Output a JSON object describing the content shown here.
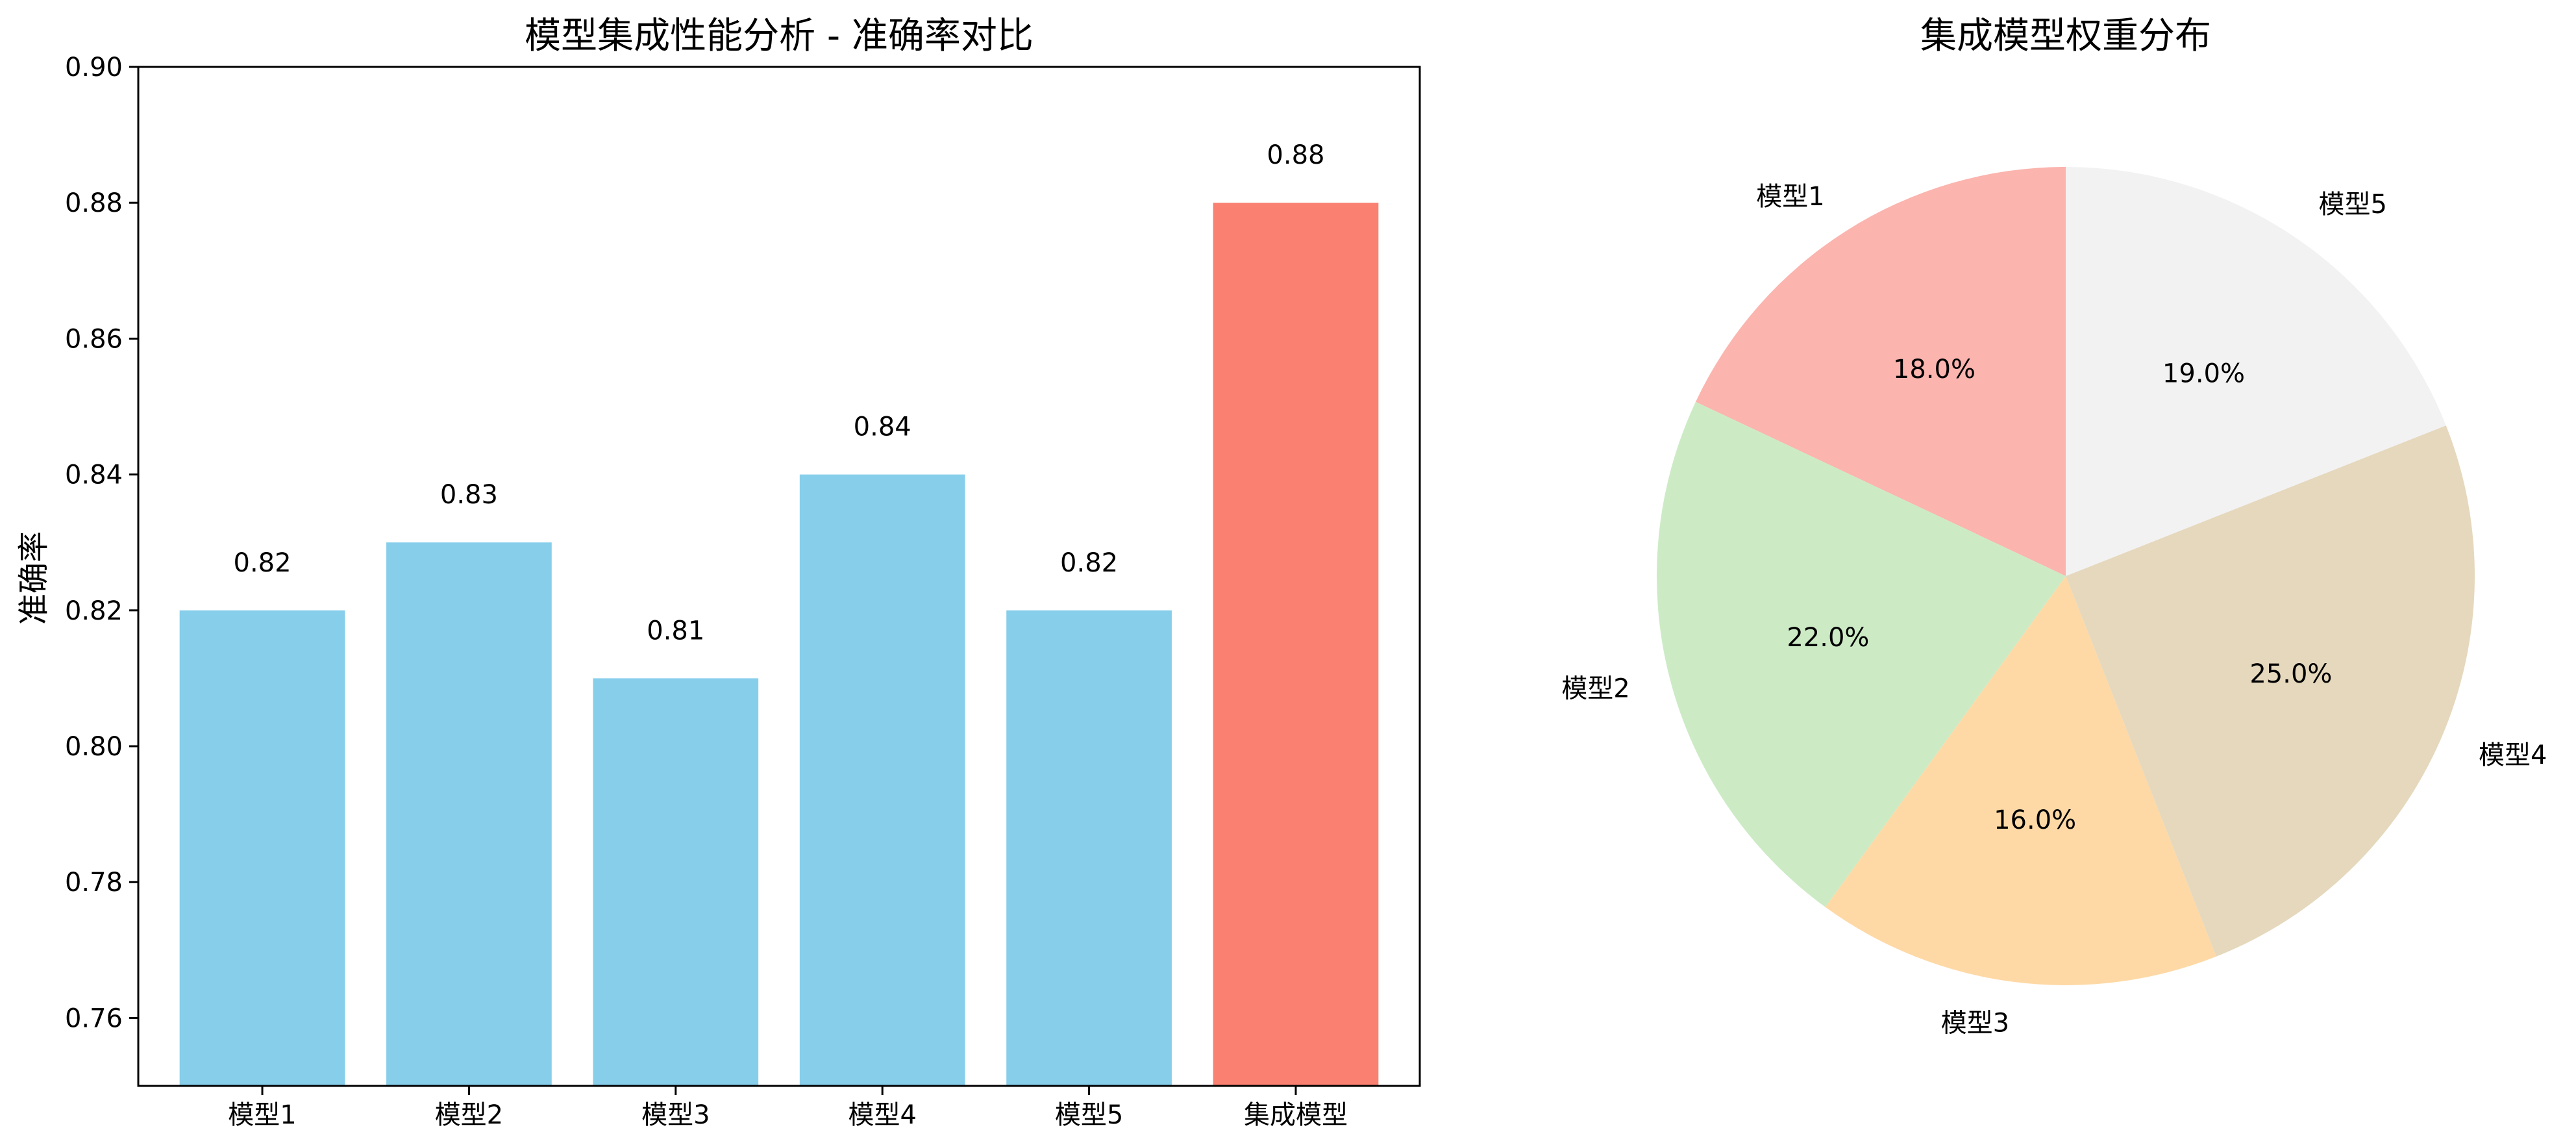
{
  "chart_data": [
    {
      "type": "bar",
      "title": "模型集成性能分析 - 准确率对比",
      "xlabel": "",
      "ylabel": "准确率",
      "ylim": [
        0.75,
        0.9
      ],
      "yticks": [
        0.76,
        0.78,
        0.8,
        0.82,
        0.84,
        0.86,
        0.88,
        0.9
      ],
      "ytick_labels": [
        "0.76",
        "0.78",
        "0.80",
        "0.82",
        "0.84",
        "0.86",
        "0.88",
        "0.90"
      ],
      "categories": [
        "模型1",
        "模型2",
        "模型3",
        "模型4",
        "模型5",
        "集成模型"
      ],
      "values": [
        0.82,
        0.83,
        0.81,
        0.84,
        0.82,
        0.88
      ],
      "value_labels": [
        "0.82",
        "0.83",
        "0.81",
        "0.84",
        "0.82",
        "0.88"
      ],
      "colors": [
        "#87CEEB",
        "#87CEEB",
        "#87CEEB",
        "#87CEEB",
        "#87CEEB",
        "#FA8072"
      ],
      "grid": false
    },
    {
      "type": "pie",
      "title": "集成模型权重分布",
      "labels": [
        "模型1",
        "模型2",
        "模型3",
        "模型4",
        "模型5"
      ],
      "values": [
        18.0,
        22.0,
        16.0,
        25.0,
        19.0
      ],
      "pct_labels": [
        "18.0%",
        "22.0%",
        "16.0%",
        "25.0%",
        "19.0%"
      ],
      "colors": [
        "#FBB4AE",
        "#CCEBC5",
        "#FED9A6",
        "#E5D8BD",
        "#F2F2F2"
      ],
      "start_angle_deg": 90,
      "direction": "counterclockwise"
    }
  ]
}
